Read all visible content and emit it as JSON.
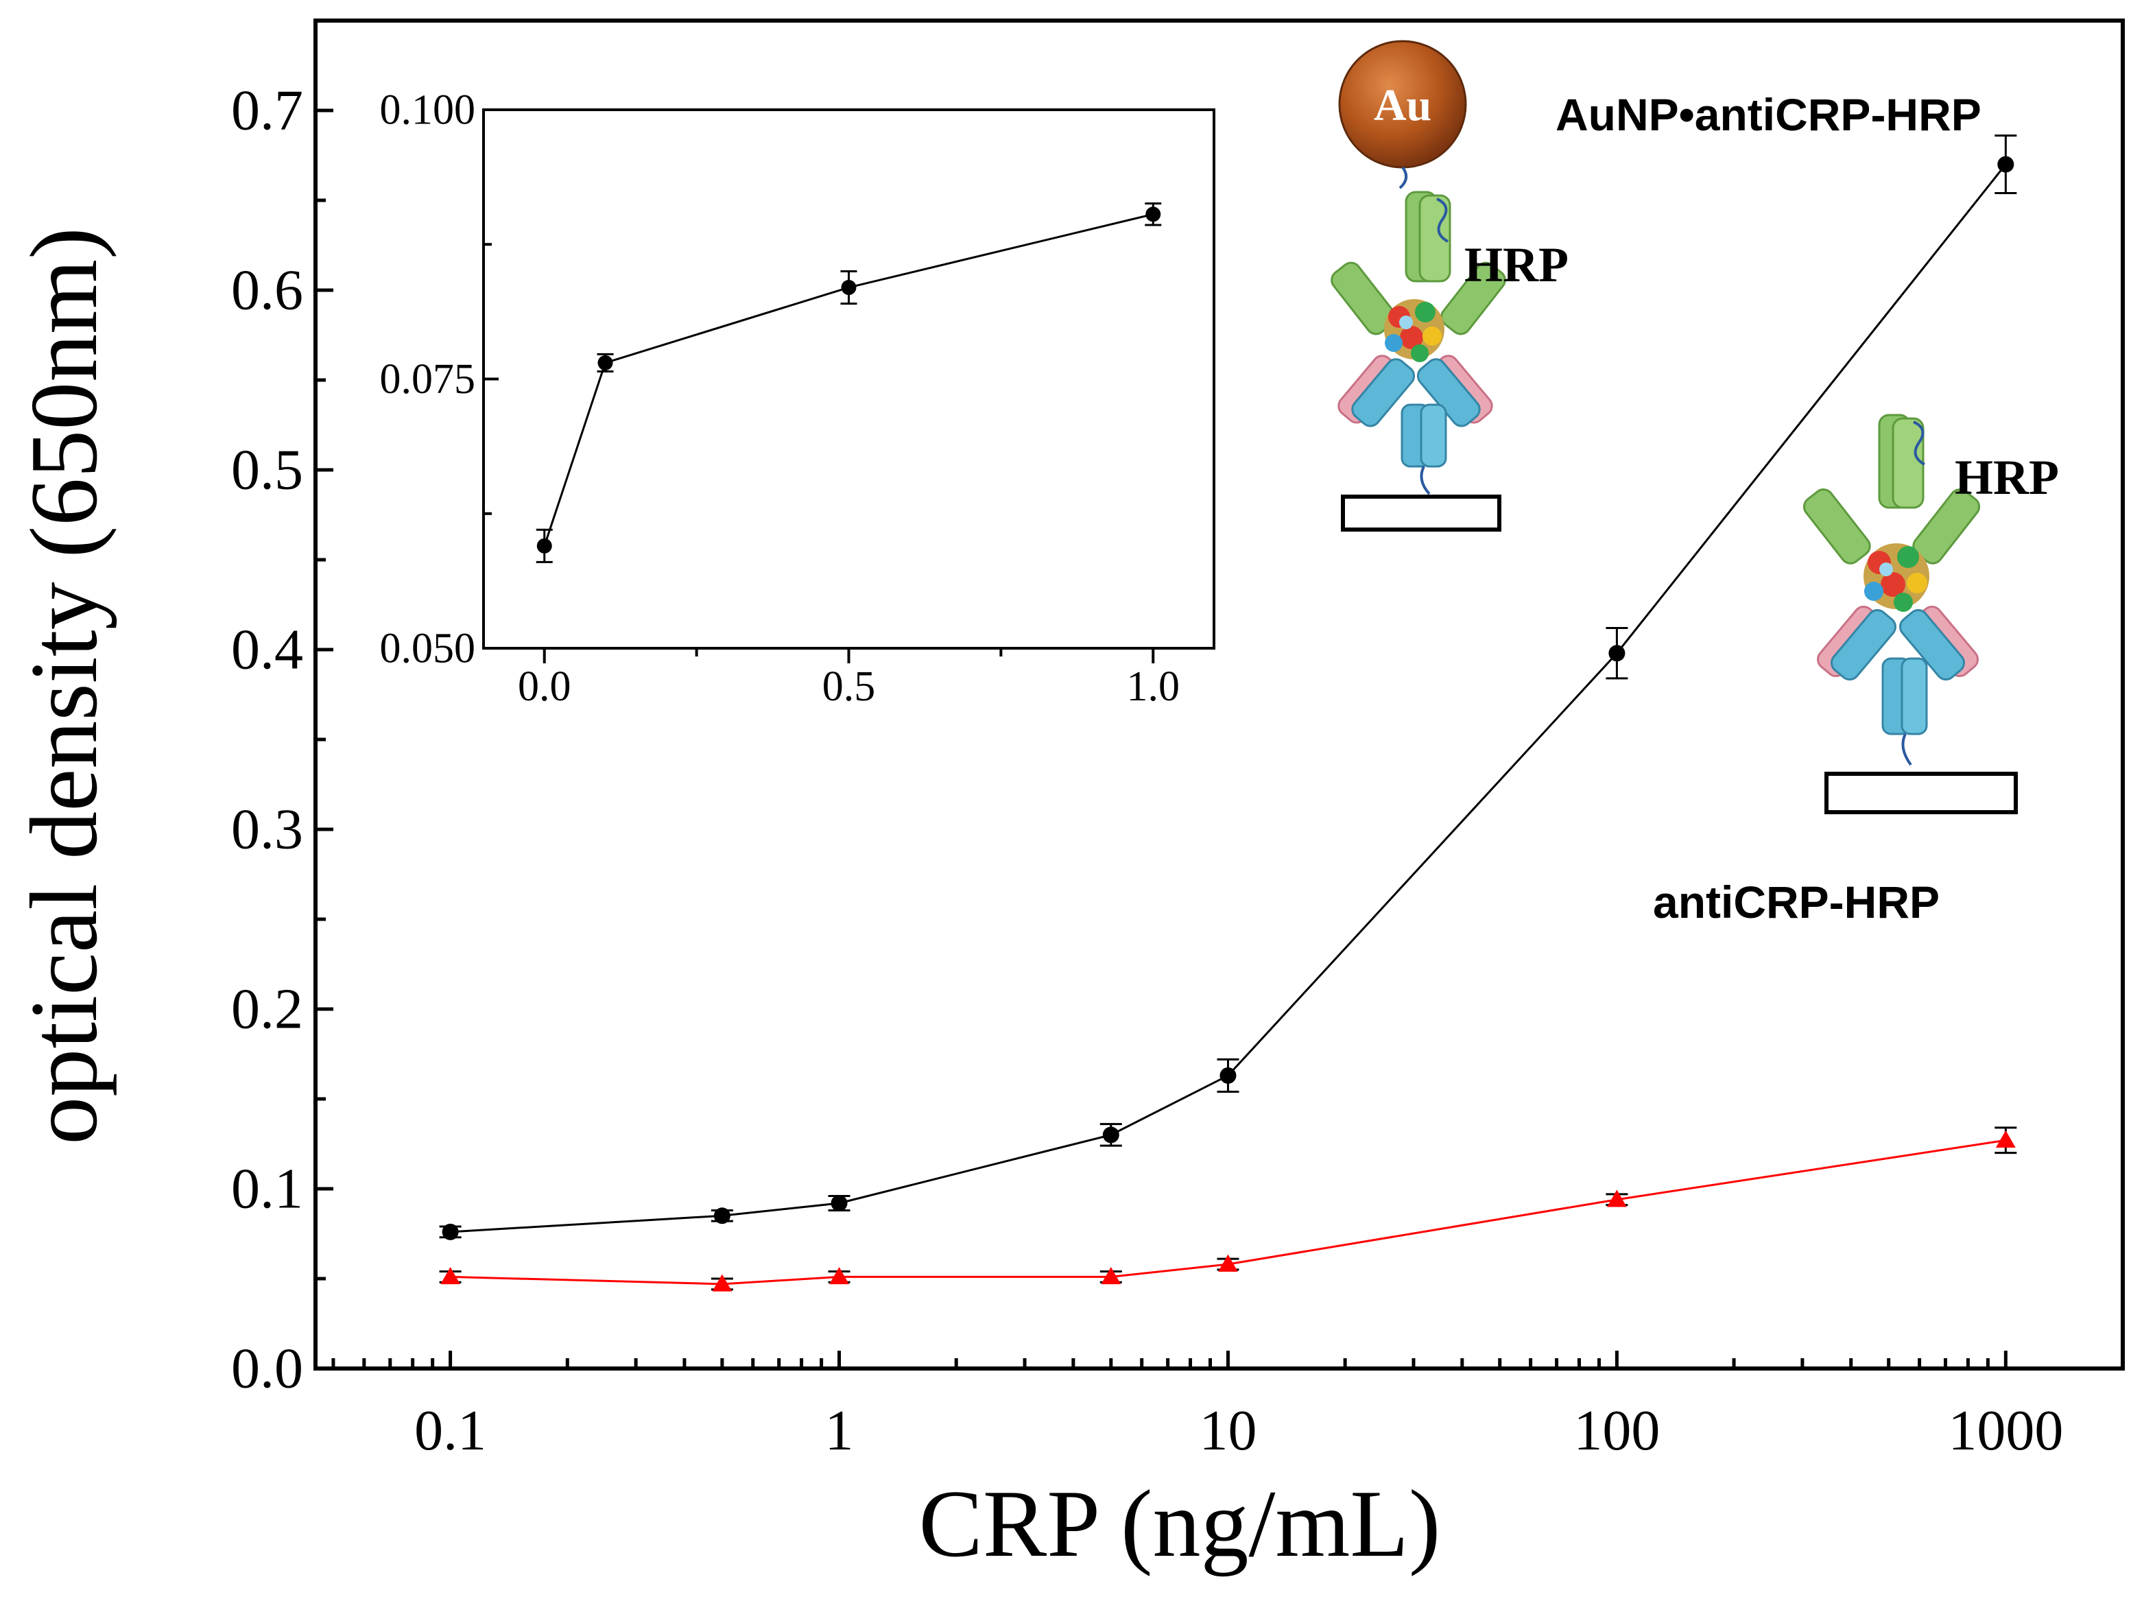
{
  "chart_data": [
    {
      "type": "line",
      "x_scale": "log",
      "xlabel": "CRP (ng/mL)",
      "ylabel": "optical density (650nm)",
      "xlim": [
        0.045,
        2000
      ],
      "ylim": [
        0,
        0.75
      ],
      "xticks": [
        0.1,
        1,
        10,
        100,
        1000
      ],
      "xtick_labels": [
        "0.1",
        "1",
        "10",
        "100",
        "1000"
      ],
      "yticks": [
        0.0,
        0.1,
        0.2,
        0.3,
        0.4,
        0.5,
        0.6,
        0.7
      ],
      "ytick_labels": [
        "0.0",
        "0.1",
        "0.2",
        "0.3",
        "0.4",
        "0.5",
        "0.6",
        "0.7"
      ],
      "series": [
        {
          "name": "AuNP•antiCRP-HRP",
          "color": "#000000",
          "marker": "circle",
          "x": [
            0.1,
            0.5,
            1,
            5,
            10,
            100,
            1000
          ],
          "y": [
            0.076,
            0.085,
            0.092,
            0.13,
            0.163,
            0.398,
            0.67
          ],
          "err": [
            0.003,
            0.003,
            0.004,
            0.006,
            0.009,
            0.014,
            0.016
          ]
        },
        {
          "name": "antiCRP-HRP",
          "color": "#ff0000",
          "marker": "triangle",
          "x": [
            0.1,
            0.5,
            1,
            5,
            10,
            100,
            1000
          ],
          "y": [
            0.051,
            0.047,
            0.051,
            0.051,
            0.058,
            0.094,
            0.127
          ],
          "err": [
            0.003,
            0.003,
            0.003,
            0.003,
            0.003,
            0.003,
            0.007
          ]
        }
      ]
    },
    {
      "type": "line",
      "inset": true,
      "xlim": [
        -0.1,
        1.1
      ],
      "ylim": [
        0.05,
        0.1
      ],
      "xticks": [
        0.0,
        0.5,
        1.0
      ],
      "xtick_labels": [
        "0.0",
        "0.5",
        "1.0"
      ],
      "yticks": [
        0.05,
        0.075,
        0.1
      ],
      "ytick_labels": [
        "0.050",
        "0.075",
        "0.100"
      ],
      "series": [
        {
          "name": "AuNP•antiCRP-HRP (inset)",
          "color": "#000000",
          "marker": "circle",
          "x": [
            0.0,
            0.1,
            0.5,
            1.0
          ],
          "y": [
            0.0595,
            0.0765,
            0.0835,
            0.0903
          ],
          "err": [
            0.0015,
            0.0008,
            0.0015,
            0.001
          ]
        }
      ]
    }
  ],
  "annotations": {
    "label_aunp": "AuNP•antiCRP-HRP",
    "label_hrp_conj": "antiCRP-HRP",
    "hrp_1": "HRP",
    "hrp_2": "HRP",
    "au": "Au"
  }
}
